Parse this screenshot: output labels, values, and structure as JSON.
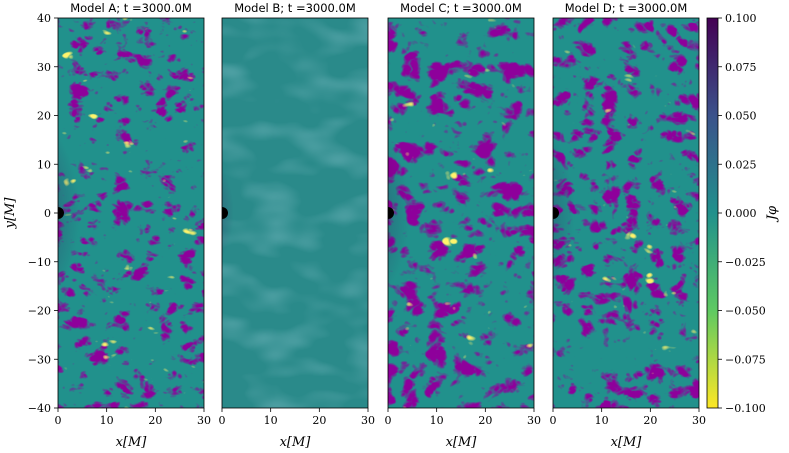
{
  "chart_data": [
    {
      "type": "heatmap",
      "title": "Model A; t =3000.0M",
      "xlabel": "x[M]",
      "ylabel": "y[M]",
      "xlim": [
        0,
        30
      ],
      "ylim": [
        -40,
        40
      ],
      "xticks": [
        "0",
        "10",
        "20",
        "30"
      ],
      "yticks": [
        "40",
        "30",
        "20",
        "10",
        "0",
        "−10",
        "−20",
        "−30",
        "−40"
      ]
    },
    {
      "type": "heatmap",
      "title": "Model B; t =3000.0M",
      "xlabel": "x[M]",
      "xlim": [
        0,
        30
      ],
      "ylim": [
        -40,
        40
      ],
      "xticks": [
        "0",
        "10",
        "20",
        "30"
      ]
    },
    {
      "type": "heatmap",
      "title": "Model C; t =3000.0M",
      "xlabel": "x[M]",
      "xlim": [
        0,
        30
      ],
      "ylim": [
        -40,
        40
      ],
      "xticks": [
        "0",
        "10",
        "20",
        "30"
      ]
    },
    {
      "type": "heatmap",
      "title": "Model D; t =3000.0M",
      "xlabel": "x[M]",
      "xlim": [
        0,
        30
      ],
      "ylim": [
        -40,
        40
      ],
      "xticks": [
        "0",
        "10",
        "20",
        "30"
      ]
    }
  ],
  "colorbar": {
    "label": "Jφ",
    "range": [
      -0.1,
      0.1
    ],
    "ticks": [
      "0.100",
      "0.075",
      "0.050",
      "0.025",
      "0.000",
      "−0.025",
      "−0.050",
      "−0.075",
      "−0.100"
    ],
    "colormap": [
      "#440154",
      "#3b528b",
      "#21918c",
      "#5ec962",
      "#fde725"
    ]
  }
}
